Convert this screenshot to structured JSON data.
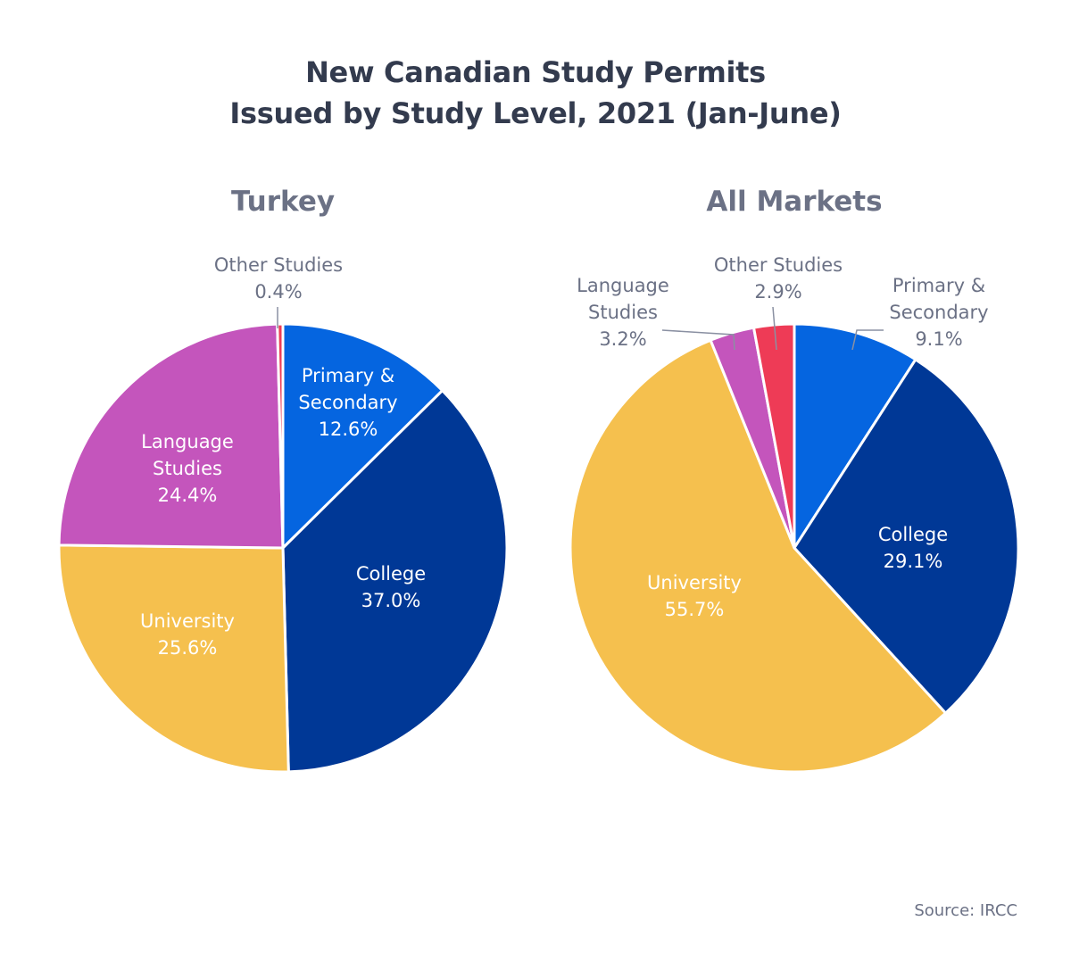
{
  "chart_data": [
    {
      "type": "pie",
      "title_line1": "New Canadian Study Permits",
      "title_line2": "Issued by Study Level, 2021 (Jan-June)",
      "subtitle": "Turkey",
      "slices": [
        {
          "name_lines": [
            "Primary &",
            "Secondary"
          ],
          "value": 12.6,
          "label": "12.6%",
          "color": "#0565e0",
          "label_color": "#ffffff"
        },
        {
          "name_lines": [
            "College"
          ],
          "value": 37.0,
          "label": "37.0%",
          "color": "#003896",
          "label_color": "#ffffff"
        },
        {
          "name_lines": [
            "University"
          ],
          "value": 25.6,
          "label": "25.6%",
          "color": "#f5c04e",
          "label_color": "#ffffff"
        },
        {
          "name_lines": [
            "Language",
            "Studies"
          ],
          "value": 24.4,
          "label": "24.4%",
          "color": "#c455bc",
          "label_color": "#ffffff"
        },
        {
          "name_lines": [
            "Other Studies"
          ],
          "value": 0.4,
          "label": "0.4%",
          "color": "#ee3b56",
          "label_color": "#6b7185"
        }
      ]
    },
    {
      "type": "pie",
      "subtitle": "All Markets",
      "slices": [
        {
          "name_lines": [
            "Primary &",
            "Secondary"
          ],
          "value": 9.1,
          "label": "9.1%",
          "color": "#0565e0",
          "label_color": "#6b7185"
        },
        {
          "name_lines": [
            "College"
          ],
          "value": 29.1,
          "label": "29.1%",
          "color": "#003896",
          "label_color": "#ffffff"
        },
        {
          "name_lines": [
            "University"
          ],
          "value": 55.7,
          "label": "55.7%",
          "color": "#f5c04e",
          "label_color": "#ffffff"
        },
        {
          "name_lines": [
            "Language",
            "Studies"
          ],
          "value": 3.2,
          "label": "3.2%",
          "color": "#c455bc",
          "label_color": "#6b7185"
        },
        {
          "name_lines": [
            "Other Studies"
          ],
          "value": 2.9,
          "label": "2.9%",
          "color": "#ee3b56",
          "label_color": "#6b7185"
        }
      ]
    }
  ],
  "source": "Source: IRCC"
}
